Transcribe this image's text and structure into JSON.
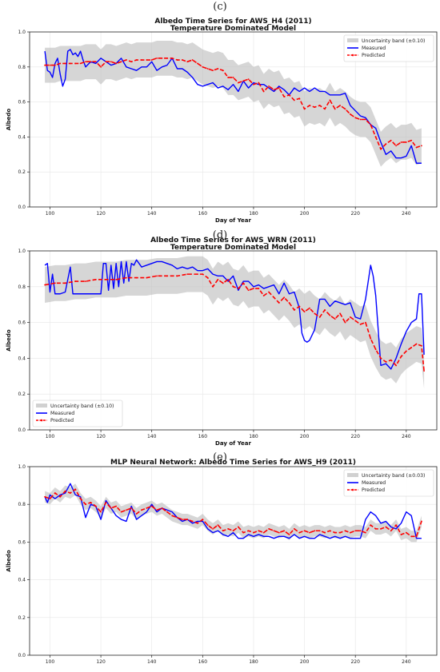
{
  "panels": [
    {
      "letter": "(c)"
    },
    {
      "letter": "(d)"
    },
    {
      "letter": "(e)"
    }
  ],
  "chart_data": [
    {
      "type": "line",
      "title": "Albedo Time Series for AWS_H4 (2011)",
      "subtitle": "Temperature Dominated Model",
      "xlabel": "Day of Year",
      "ylabel": "Albedo",
      "xlim": [
        92,
        252
      ],
      "ylim": [
        0,
        1.0
      ],
      "xticks": [
        100,
        120,
        140,
        160,
        180,
        200,
        220,
        240
      ],
      "yticks": [
        0.0,
        0.2,
        0.4,
        0.6,
        0.8,
        1.0
      ],
      "grid": true,
      "legend_position": "top-right",
      "band_label": "Uncertainty band (±0.10)",
      "band_halfwidth": 0.1,
      "series": [
        {
          "name": "Measured",
          "color": "#0000ff",
          "style": "solid",
          "x": [
            98,
            99,
            100,
            101,
            102,
            103,
            104,
            105,
            106,
            107,
            108,
            109,
            110,
            111,
            112,
            113,
            114,
            116,
            118,
            120,
            122,
            124,
            126,
            128,
            130,
            132,
            134,
            136,
            138,
            140,
            142,
            144,
            146,
            148,
            150,
            152,
            154,
            156,
            158,
            160,
            162,
            164,
            166,
            168,
            170,
            172,
            174,
            176,
            178,
            180,
            182,
            184,
            186,
            188,
            190,
            192,
            194,
            196,
            198,
            200,
            202,
            204,
            206,
            208,
            210,
            212,
            214,
            216,
            218,
            220,
            222,
            224,
            226,
            228,
            230,
            232,
            234,
            236,
            238,
            240,
            242,
            244,
            246
          ],
          "y": [
            0.89,
            0.78,
            0.77,
            0.74,
            0.82,
            0.85,
            0.76,
            0.69,
            0.73,
            0.89,
            0.9,
            0.87,
            0.88,
            0.86,
            0.89,
            0.84,
            0.8,
            0.83,
            0.82,
            0.85,
            0.83,
            0.81,
            0.82,
            0.85,
            0.8,
            0.79,
            0.78,
            0.8,
            0.8,
            0.83,
            0.78,
            0.8,
            0.81,
            0.85,
            0.79,
            0.79,
            0.77,
            0.74,
            0.7,
            0.69,
            0.7,
            0.71,
            0.68,
            0.69,
            0.67,
            0.7,
            0.66,
            0.72,
            0.68,
            0.71,
            0.7,
            0.7,
            0.68,
            0.66,
            0.69,
            0.67,
            0.64,
            0.68,
            0.66,
            0.68,
            0.66,
            0.68,
            0.66,
            0.66,
            0.64,
            0.64,
            0.64,
            0.65,
            0.58,
            0.55,
            0.52,
            0.51,
            0.47,
            0.45,
            0.37,
            0.3,
            0.32,
            0.28,
            0.28,
            0.29,
            0.35,
            0.25,
            0.25
          ]
        },
        {
          "name": "Predicted",
          "color": "#ff0000",
          "style": "dashed",
          "x": [
            98,
            100,
            102,
            104,
            106,
            108,
            110,
            112,
            114,
            116,
            118,
            120,
            122,
            124,
            126,
            128,
            130,
            132,
            134,
            136,
            138,
            140,
            142,
            144,
            146,
            148,
            150,
            152,
            154,
            156,
            158,
            160,
            162,
            164,
            166,
            168,
            170,
            172,
            174,
            176,
            178,
            180,
            182,
            184,
            186,
            188,
            190,
            192,
            194,
            196,
            198,
            200,
            202,
            204,
            206,
            208,
            210,
            212,
            214,
            216,
            218,
            220,
            222,
            224,
            226,
            228,
            230,
            232,
            234,
            236,
            238,
            240,
            242,
            244,
            246
          ],
          "y": [
            0.81,
            0.81,
            0.81,
            0.82,
            0.82,
            0.82,
            0.82,
            0.82,
            0.83,
            0.83,
            0.83,
            0.8,
            0.83,
            0.83,
            0.82,
            0.83,
            0.84,
            0.83,
            0.84,
            0.84,
            0.84,
            0.84,
            0.85,
            0.85,
            0.85,
            0.85,
            0.84,
            0.84,
            0.83,
            0.84,
            0.82,
            0.8,
            0.79,
            0.78,
            0.79,
            0.78,
            0.74,
            0.74,
            0.71,
            0.72,
            0.73,
            0.7,
            0.71,
            0.66,
            0.69,
            0.67,
            0.68,
            0.63,
            0.64,
            0.61,
            0.62,
            0.56,
            0.58,
            0.57,
            0.58,
            0.56,
            0.61,
            0.56,
            0.58,
            0.56,
            0.53,
            0.51,
            0.5,
            0.5,
            0.47,
            0.4,
            0.33,
            0.36,
            0.38,
            0.35,
            0.37,
            0.37,
            0.38,
            0.34,
            0.35
          ]
        }
      ]
    },
    {
      "type": "line",
      "title": "Albedo Time Series for AWS_WRN (2011)",
      "subtitle": "Temperature Dominated Model",
      "xlabel": "Day of Year",
      "ylabel": "Albedo",
      "xlim": [
        92,
        252
      ],
      "ylim": [
        0,
        1.0
      ],
      "xticks": [
        100,
        120,
        140,
        160,
        180,
        200,
        220,
        240
      ],
      "yticks": [
        0.0,
        0.2,
        0.4,
        0.6,
        0.8,
        1.0
      ],
      "grid": true,
      "legend_position": "bottom-left",
      "band_label": "Uncertainty band (±0.10)",
      "band_halfwidth": 0.1,
      "series": [
        {
          "name": "Measured",
          "color": "#0000ff",
          "style": "solid",
          "x": [
            98,
            99,
            100,
            101,
            102,
            104,
            106,
            108,
            109,
            110,
            112,
            114,
            116,
            118,
            120,
            121,
            122,
            123,
            124,
            125,
            126,
            127,
            128,
            129,
            130,
            131,
            132,
            133,
            134,
            136,
            138,
            140,
            142,
            144,
            146,
            148,
            150,
            152,
            154,
            156,
            158,
            160,
            162,
            164,
            166,
            168,
            170,
            172,
            174,
            176,
            178,
            180,
            182,
            184,
            186,
            188,
            190,
            192,
            194,
            196,
            198,
            199,
            200,
            201,
            202,
            204,
            206,
            208,
            210,
            212,
            214,
            216,
            218,
            220,
            222,
            224,
            226,
            227,
            228,
            230,
            232,
            234,
            236,
            238,
            240,
            242,
            244,
            245,
            246,
            247
          ],
          "y": [
            0.92,
            0.93,
            0.77,
            0.87,
            0.76,
            0.76,
            0.77,
            0.91,
            0.76,
            0.76,
            0.76,
            0.76,
            0.76,
            0.76,
            0.76,
            0.93,
            0.93,
            0.78,
            0.92,
            0.79,
            0.93,
            0.8,
            0.94,
            0.82,
            0.94,
            0.83,
            0.93,
            0.92,
            0.95,
            0.91,
            0.92,
            0.93,
            0.94,
            0.94,
            0.93,
            0.92,
            0.9,
            0.91,
            0.9,
            0.91,
            0.89,
            0.89,
            0.9,
            0.87,
            0.86,
            0.86,
            0.83,
            0.86,
            0.78,
            0.83,
            0.83,
            0.8,
            0.81,
            0.79,
            0.8,
            0.81,
            0.76,
            0.82,
            0.76,
            0.77,
            0.68,
            0.54,
            0.5,
            0.49,
            0.5,
            0.56,
            0.73,
            0.73,
            0.69,
            0.72,
            0.71,
            0.7,
            0.71,
            0.63,
            0.62,
            0.73,
            0.92,
            0.86,
            0.75,
            0.36,
            0.37,
            0.34,
            0.4,
            0.48,
            0.55,
            0.6,
            0.62,
            0.76,
            0.76,
            0.42
          ]
        },
        {
          "name": "Predicted",
          "color": "#ff0000",
          "style": "dashed",
          "x": [
            98,
            102,
            106,
            110,
            114,
            118,
            122,
            126,
            130,
            134,
            138,
            142,
            146,
            150,
            154,
            158,
            160,
            162,
            164,
            166,
            168,
            170,
            172,
            174,
            176,
            178,
            180,
            182,
            184,
            186,
            188,
            190,
            192,
            194,
            196,
            198,
            200,
            202,
            204,
            206,
            208,
            210,
            212,
            214,
            216,
            218,
            220,
            222,
            224,
            226,
            228,
            230,
            232,
            234,
            236,
            238,
            240,
            242,
            244,
            246,
            247
          ],
          "y": [
            0.81,
            0.82,
            0.82,
            0.83,
            0.83,
            0.84,
            0.84,
            0.84,
            0.85,
            0.85,
            0.85,
            0.86,
            0.86,
            0.86,
            0.87,
            0.87,
            0.87,
            0.85,
            0.8,
            0.84,
            0.82,
            0.84,
            0.8,
            0.79,
            0.82,
            0.78,
            0.79,
            0.79,
            0.75,
            0.77,
            0.74,
            0.71,
            0.74,
            0.71,
            0.67,
            0.69,
            0.66,
            0.68,
            0.65,
            0.63,
            0.67,
            0.64,
            0.62,
            0.65,
            0.6,
            0.63,
            0.61,
            0.59,
            0.6,
            0.51,
            0.45,
            0.4,
            0.38,
            0.39,
            0.36,
            0.41,
            0.44,
            0.46,
            0.48,
            0.47,
            0.33
          ]
        }
      ]
    },
    {
      "type": "line",
      "title": "MLP Neural Network: Albedo Time Series for AWS_H9 (2011)",
      "subtitle": "",
      "xlabel": "",
      "ylabel": "Albedo",
      "xlim": [
        92,
        252
      ],
      "ylim": [
        0,
        1.0
      ],
      "xticks": [
        100,
        120,
        140,
        160,
        180,
        200,
        220,
        240
      ],
      "yticks": [
        0.0,
        0.2,
        0.4,
        0.6,
        0.8,
        1.0
      ],
      "grid": true,
      "legend_position": "top-right",
      "band_label": "Uncertainty band (±0.03)",
      "band_halfwidth": 0.03,
      "series": [
        {
          "name": "Measured",
          "color": "#0000ff",
          "style": "solid",
          "x": [
            98,
            99,
            100,
            102,
            104,
            106,
            108,
            110,
            112,
            114,
            116,
            118,
            120,
            122,
            124,
            126,
            128,
            130,
            132,
            134,
            136,
            138,
            140,
            142,
            144,
            146,
            148,
            150,
            152,
            154,
            156,
            158,
            160,
            162,
            164,
            166,
            168,
            170,
            172,
            174,
            176,
            178,
            180,
            182,
            184,
            186,
            188,
            190,
            192,
            194,
            196,
            198,
            200,
            202,
            204,
            206,
            208,
            210,
            212,
            214,
            216,
            218,
            220,
            222,
            224,
            226,
            228,
            230,
            232,
            234,
            236,
            238,
            240,
            242,
            244,
            246
          ],
          "y": [
            0.84,
            0.81,
            0.85,
            0.83,
            0.85,
            0.86,
            0.91,
            0.85,
            0.84,
            0.73,
            0.8,
            0.79,
            0.72,
            0.82,
            0.78,
            0.74,
            0.72,
            0.71,
            0.79,
            0.72,
            0.74,
            0.76,
            0.8,
            0.76,
            0.78,
            0.77,
            0.76,
            0.73,
            0.71,
            0.72,
            0.7,
            0.71,
            0.71,
            0.67,
            0.65,
            0.66,
            0.64,
            0.63,
            0.65,
            0.62,
            0.62,
            0.64,
            0.63,
            0.64,
            0.63,
            0.63,
            0.62,
            0.63,
            0.63,
            0.62,
            0.64,
            0.62,
            0.63,
            0.62,
            0.62,
            0.64,
            0.63,
            0.62,
            0.63,
            0.62,
            0.63,
            0.62,
            0.62,
            0.62,
            0.72,
            0.76,
            0.74,
            0.7,
            0.71,
            0.68,
            0.67,
            0.7,
            0.76,
            0.74,
            0.62,
            0.62
          ]
        },
        {
          "name": "Predicted",
          "color": "#ff0000",
          "style": "dashed",
          "x": [
            98,
            100,
            102,
            104,
            106,
            108,
            110,
            112,
            114,
            116,
            118,
            120,
            122,
            124,
            126,
            128,
            130,
            132,
            134,
            136,
            138,
            140,
            142,
            144,
            146,
            148,
            150,
            152,
            154,
            156,
            158,
            160,
            162,
            164,
            166,
            168,
            170,
            172,
            174,
            176,
            178,
            180,
            182,
            184,
            186,
            188,
            190,
            192,
            194,
            196,
            198,
            200,
            202,
            204,
            206,
            208,
            210,
            212,
            214,
            216,
            218,
            220,
            222,
            224,
            226,
            228,
            230,
            232,
            234,
            236,
            238,
            240,
            242,
            244,
            246
          ],
          "y": [
            0.84,
            0.83,
            0.86,
            0.84,
            0.87,
            0.86,
            0.88,
            0.83,
            0.8,
            0.81,
            0.79,
            0.76,
            0.81,
            0.78,
            0.79,
            0.76,
            0.77,
            0.78,
            0.75,
            0.77,
            0.78,
            0.79,
            0.77,
            0.78,
            0.76,
            0.74,
            0.73,
            0.72,
            0.72,
            0.71,
            0.7,
            0.72,
            0.69,
            0.67,
            0.69,
            0.66,
            0.67,
            0.66,
            0.68,
            0.65,
            0.66,
            0.65,
            0.66,
            0.65,
            0.67,
            0.66,
            0.65,
            0.66,
            0.64,
            0.67,
            0.65,
            0.66,
            0.65,
            0.66,
            0.66,
            0.65,
            0.66,
            0.65,
            0.65,
            0.66,
            0.65,
            0.66,
            0.66,
            0.65,
            0.69,
            0.67,
            0.67,
            0.68,
            0.66,
            0.69,
            0.64,
            0.65,
            0.63,
            0.63,
            0.71
          ]
        }
      ]
    }
  ]
}
